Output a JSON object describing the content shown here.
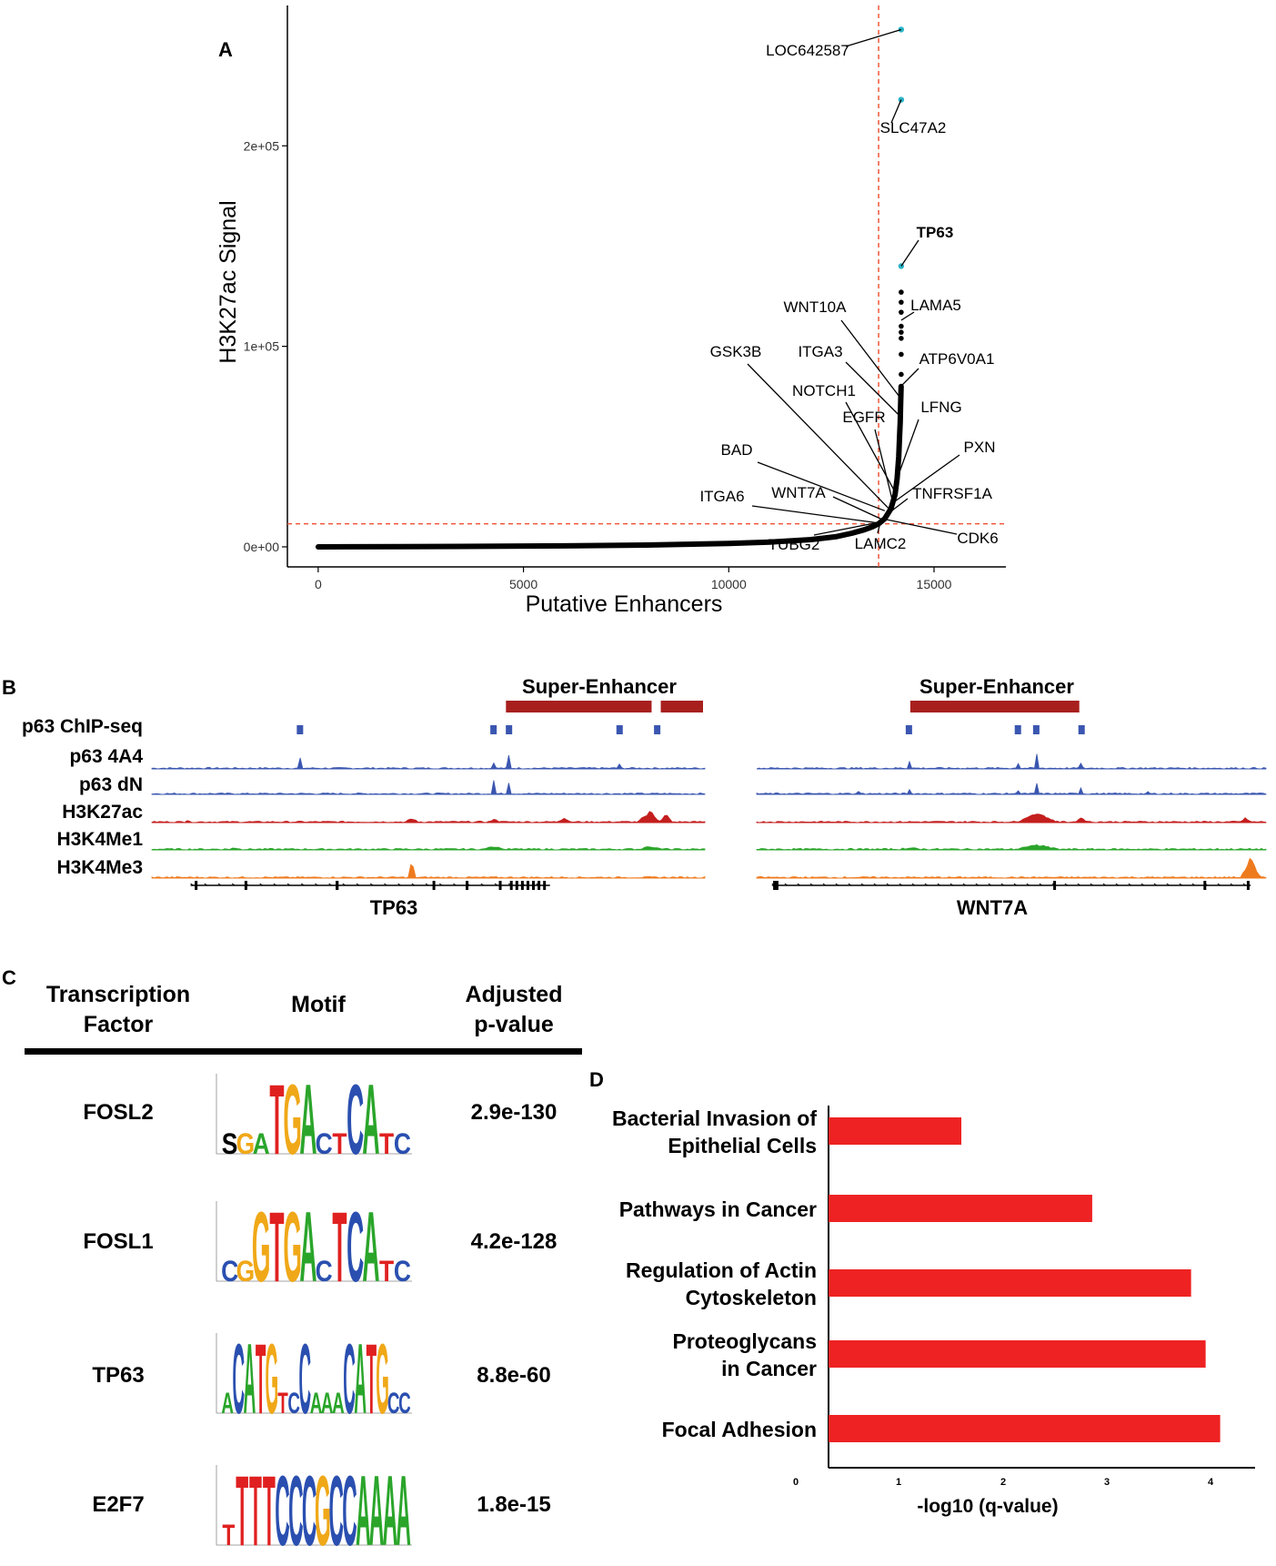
{
  "panel_labels": {
    "a": "A",
    "b": "B",
    "c": "C",
    "d": "D"
  },
  "colors": {
    "points": "#000000",
    "highlight_points": "#2bb5c8",
    "threshold_lines": "#f0553a",
    "super_enhancer_bar": "#a8201e",
    "chip_peak": "#3a56b0",
    "track_p63": "#3a56b0",
    "track_h3k27ac": "#c41e1e",
    "track_h3k4me1": "#2aa52a",
    "track_h3k4me3": "#ee7a1e",
    "enrichment_bar": "#ee2222"
  },
  "chart_data": [
    {
      "type": "scatter",
      "panel": "A",
      "description_hidden": false,
      "title": "",
      "xlabel": "Putative Enhancers",
      "ylabel": "H3K27ac Signal",
      "xlim": [
        -750,
        16750
      ],
      "ylim": [
        -10000,
        270000
      ],
      "xticks": [
        0,
        5000,
        10000,
        15000
      ],
      "xtick_labels": [
        "0",
        "5000",
        "10000",
        "15000"
      ],
      "yticks": [
        0,
        100000,
        200000
      ],
      "ytick_labels": [
        "0e+00",
        "1e+05",
        "2e+05"
      ],
      "threshold": {
        "x": 13650,
        "y": 11500
      },
      "curve_points": [
        [
          0,
          0
        ],
        [
          2000,
          100
        ],
        [
          4000,
          250
        ],
        [
          6000,
          500
        ],
        [
          8000,
          900
        ],
        [
          10000,
          1700
        ],
        [
          11000,
          2400
        ],
        [
          12000,
          3600
        ],
        [
          12600,
          5000
        ],
        [
          13000,
          6800
        ],
        [
          13300,
          8500
        ],
        [
          13500,
          10000
        ],
        [
          13650,
          11500
        ],
        [
          13800,
          14000
        ],
        [
          13950,
          19000
        ],
        [
          14050,
          26000
        ],
        [
          14100,
          34000
        ],
        [
          14140,
          45000
        ],
        [
          14160,
          55000
        ],
        [
          14175,
          62000
        ],
        [
          14185,
          70000
        ],
        [
          14192,
          75000
        ],
        [
          14198,
          80000
        ]
      ],
      "top_points": [
        [
          14200,
          86000
        ],
        [
          14200,
          96000
        ],
        [
          14200,
          104000
        ],
        [
          14200,
          107000
        ],
        [
          14200,
          110000
        ],
        [
          14200,
          117000
        ],
        [
          14200,
          122000
        ],
        [
          14200,
          127000
        ]
      ],
      "highlight_points": [
        [
          14200,
          140000
        ],
        [
          14200,
          223000
        ],
        [
          14200,
          258000
        ]
      ],
      "labeled_genes": [
        {
          "gene": "LOC642587",
          "x": 14200,
          "y": 258000,
          "bold": false
        },
        {
          "gene": "SLC47A2",
          "x": 14200,
          "y": 223000,
          "bold": false
        },
        {
          "gene": "TP63",
          "x": 14200,
          "y": 140000,
          "bold": true
        },
        {
          "gene": "LAMA5",
          "x": 14200,
          "y": 113000,
          "bold": false
        },
        {
          "gene": "WNT10A",
          "x": 14190,
          "y": 74000,
          "bold": false
        },
        {
          "gene": "ATP6V0A1",
          "x": 14190,
          "y": 80000,
          "bold": false
        },
        {
          "gene": "ITGA3",
          "x": 14180,
          "y": 65000,
          "bold": false
        },
        {
          "gene": "GSK3B",
          "x": 13950,
          "y": 18000,
          "bold": false
        },
        {
          "gene": "NOTCH1",
          "x": 14060,
          "y": 27000,
          "bold": false
        },
        {
          "gene": "LFNG",
          "x": 14100,
          "y": 34000,
          "bold": false
        },
        {
          "gene": "EGFR",
          "x": 14000,
          "y": 22000,
          "bold": false
        },
        {
          "gene": "PXN",
          "x": 14000,
          "y": 22000,
          "bold": false
        },
        {
          "gene": "BAD",
          "x": 13800,
          "y": 18000,
          "bold": false
        },
        {
          "gene": "WNT7A",
          "x": 13700,
          "y": 14000,
          "bold": false
        },
        {
          "gene": "TNFRSF1A",
          "x": 13780,
          "y": 15000,
          "bold": false
        },
        {
          "gene": "ITGA6",
          "x": 13600,
          "y": 12000,
          "bold": false
        },
        {
          "gene": "TUBG2",
          "x": 13600,
          "y": 12000,
          "bold": false
        },
        {
          "gene": "LAMC2",
          "x": 13700,
          "y": 13000,
          "bold": false
        },
        {
          "gene": "CDK6",
          "x": 13750,
          "y": 14000,
          "bold": false
        }
      ]
    },
    {
      "type": "bar",
      "panel": "D",
      "orientation": "horizontal",
      "xlabel": "-log10 (q-value)",
      "xlim": [
        0,
        4.4
      ],
      "xticks": [
        0,
        1,
        2,
        3,
        4
      ],
      "xtick_labels": [
        "0",
        "1",
        "2",
        "3",
        "4"
      ],
      "categories": [
        [
          "Bacterial Invasion of",
          "Epithelial Cells"
        ],
        [
          "Pathways in Cancer"
        ],
        [
          "Regulation of Actin",
          "Cytoskeleton"
        ],
        [
          "Proteoglycans",
          "in Cancer"
        ],
        [
          "Focal Adhesion"
        ]
      ],
      "values": [
        1.37,
        2.72,
        3.74,
        3.89,
        4.04
      ]
    }
  ],
  "panel_b": {
    "left_locus": {
      "gene": "TP63",
      "super_enhancer_label": "Super-Enhancer",
      "super_enhancers": [
        [
          0.637,
          0.907
        ],
        [
          0.917,
          1.0
        ]
      ]
    },
    "right_locus": {
      "gene": "WNT7A",
      "super_enhancer_label": "Super-Enhancer",
      "super_enhancers": [
        [
          0.298,
          0.637
        ]
      ]
    },
    "tracks": [
      "p63 ChIP-seq",
      "p63 4A4",
      "p63 dN",
      "H3K27ac",
      "H3K4Me1",
      "H3K4Me3"
    ]
  },
  "panel_c": {
    "headers": {
      "tf_line1": "Transcription",
      "tf_line2": "Factor",
      "motif": "Motif",
      "p_line1": "Adjusted",
      "p_line2": "p-value"
    },
    "rows": [
      {
        "tf": "FOSL2",
        "pvalue": "2.9e-130",
        "motif": "sgaTGActCAtc"
      },
      {
        "tf": "FOSL1",
        "pvalue": "4.2e-128",
        "motif": "cgGTGAcTCAtc"
      },
      {
        "tf": "TP63",
        "pvalue": "8.8e-60",
        "motif": "aCATGtcCaaaCATGcc"
      },
      {
        "tf": "E2F7",
        "pvalue": "1.8e-15",
        "motif": "tTTTCCCGCCAAAA"
      }
    ]
  }
}
